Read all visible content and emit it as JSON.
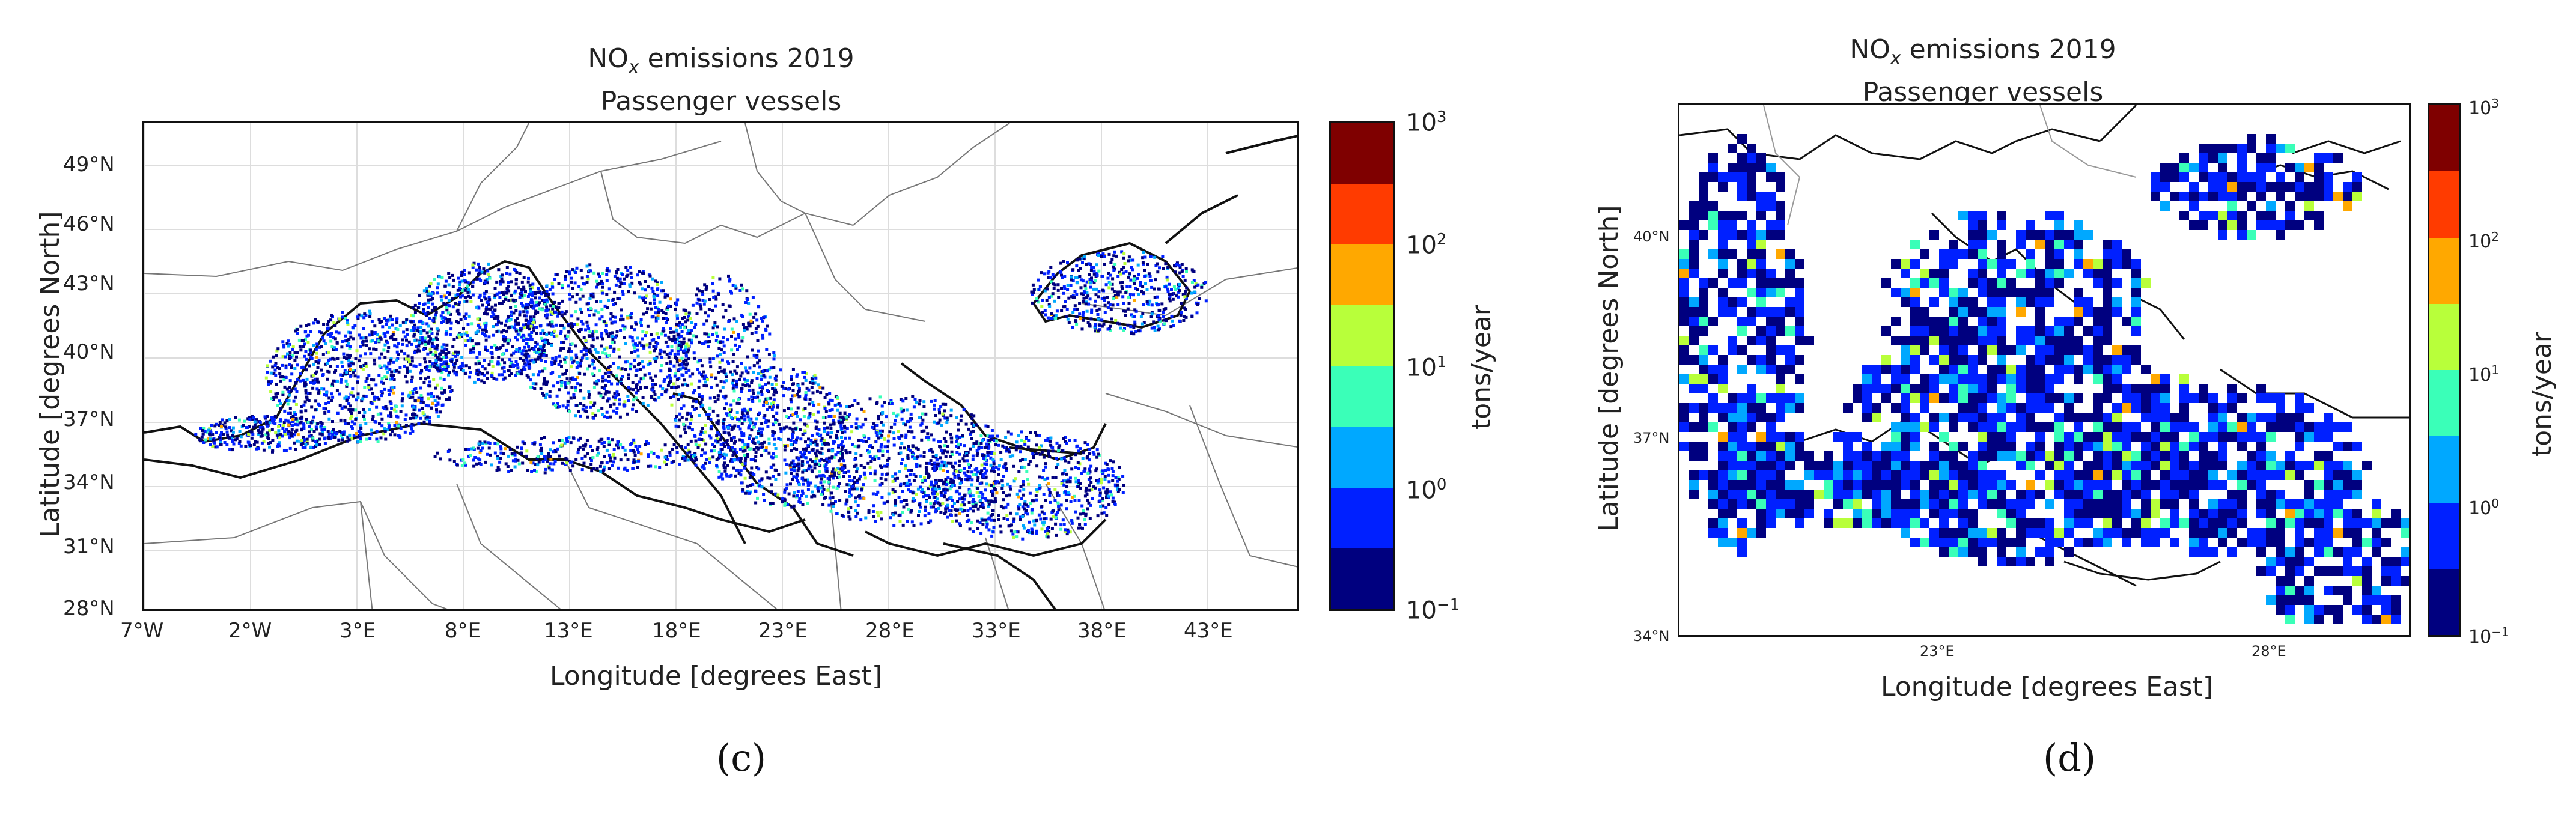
{
  "panels": [
    {
      "id": "c",
      "title_line1_prefix": "NO",
      "title_line1_sub": "x",
      "title_line1_suffix": " emissions 2019",
      "title_line2": "Passenger vessels",
      "xlabel": "Longitude [degrees East]",
      "ylabel": "Latitude [degrees North]",
      "xticks": [
        "7°W",
        "2°W",
        "3°E",
        "8°E",
        "13°E",
        "18°E",
        "23°E",
        "28°E",
        "33°E",
        "38°E",
        "43°E"
      ],
      "yticks": [
        "49°N",
        "46°N",
        "43°N",
        "40°N",
        "37°N",
        "34°N",
        "31°N",
        "28°N"
      ],
      "colorbar_label": "tons/year",
      "colorbar_ticks": [
        {
          "base": "10",
          "exp": "3"
        },
        {
          "base": "10",
          "exp": "2"
        },
        {
          "base": "10",
          "exp": "1"
        },
        {
          "base": "10",
          "exp": "0"
        },
        {
          "base": "10",
          "exp": "−1"
        }
      ],
      "caption": "(c)"
    },
    {
      "id": "d",
      "title_line1_prefix": "NO",
      "title_line1_sub": "x",
      "title_line1_suffix": " emissions 2019",
      "title_line2": "Passenger vessels",
      "xlabel": "Longitude [degrees East]",
      "ylabel": "Latitude [degrees North]",
      "xticks": [
        "23°E",
        "28°E"
      ],
      "yticks": [
        "40°N",
        "37°N",
        "34°N"
      ],
      "colorbar_label": "tons/year",
      "colorbar_ticks": [
        {
          "base": "10",
          "exp": "3"
        },
        {
          "base": "10",
          "exp": "2"
        },
        {
          "base": "10",
          "exp": "1"
        },
        {
          "base": "10",
          "exp": "0"
        },
        {
          "base": "10",
          "exp": "−1"
        }
      ],
      "caption": "(d)"
    }
  ],
  "colorbar_colors": [
    "#7f0000",
    "#ff3b00",
    "#ffa800",
    "#b8ff3a",
    "#3affb8",
    "#00a8ff",
    "#0020ff",
    "#00007f"
  ]
}
